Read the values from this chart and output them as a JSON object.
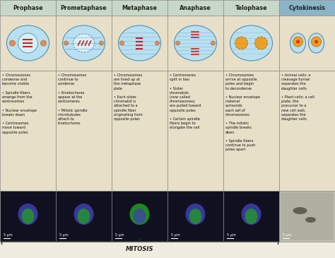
{
  "stages": [
    "Prophase",
    "Prometaphase",
    "Metaphase",
    "Anaphase",
    "Telophase",
    "Cytokinesis"
  ],
  "header_bg": "#c8d8c8",
  "cytokinesis_header_bg": "#8ab4c8",
  "body_bg": "#e8dfc8",
  "border_color": "#888888",
  "title_color": "#222222",
  "text_color": "#111111",
  "mitosis_label": "MITOSIS",
  "bullet_texts": [
    "• Chromosomes\ncondense and\nbecome visible\n\n• Spindle fibers\nemerge from the\ncentrosomes\n\n• Nuclear envelope\nbreaks down\n\n• Centrosomes\nmove toward\nopposite poles",
    "• Chromosomes\ncontinue to\ncondense\n\n• Kinetochores\nappear at the\ncentromeres\n\n• Mitotic spindle\nmicrotubules\nattach to\nkinetochores",
    "• Chromosomes\nare lined up at\nthe metaphase\nplate\n\n• Each sister\nchromatid is\nattached to a\nspindle fiber\noriginating from\nopposite poles",
    "• Centromeres\nsplit in two\n\n• Sister\nchromatids\n(now called\nchromosomes)\nare pulled toward\nopposite poles\n\n• Certain spindle\nfibers begin to\nelongate the cell",
    "• Chromosomes\narrive at opposite\npoles and begin\nto decondense\n\n• Nuclear envelope\nmaterial\nsurrounds\neach set of\nchromosomes\n\n• The mitotic\nspindle breaks\ndown\n\n• Spindle fibers\ncontinue to push\npoles apart",
    "• Animal cells: a\ncleavage furrow\nseparates the\ndaughter cells\n\n• Plant cells: a cell\nplate, the\nprecursor to a\nnew cell wall,\nseparates the\ndaughter cells"
  ],
  "diagram_colors": [
    "#a0d0e8",
    "#a0d0e8",
    "#a0d0e8",
    "#a0d0e8",
    "#a0d0e8",
    "#a0d0e8"
  ],
  "photo_colors": [
    "#101020",
    "#101020",
    "#101020",
    "#101020",
    "#101020",
    "#c0c0b0"
  ],
  "scale_label": "5 μm",
  "fig_bg": "#f0ece0"
}
